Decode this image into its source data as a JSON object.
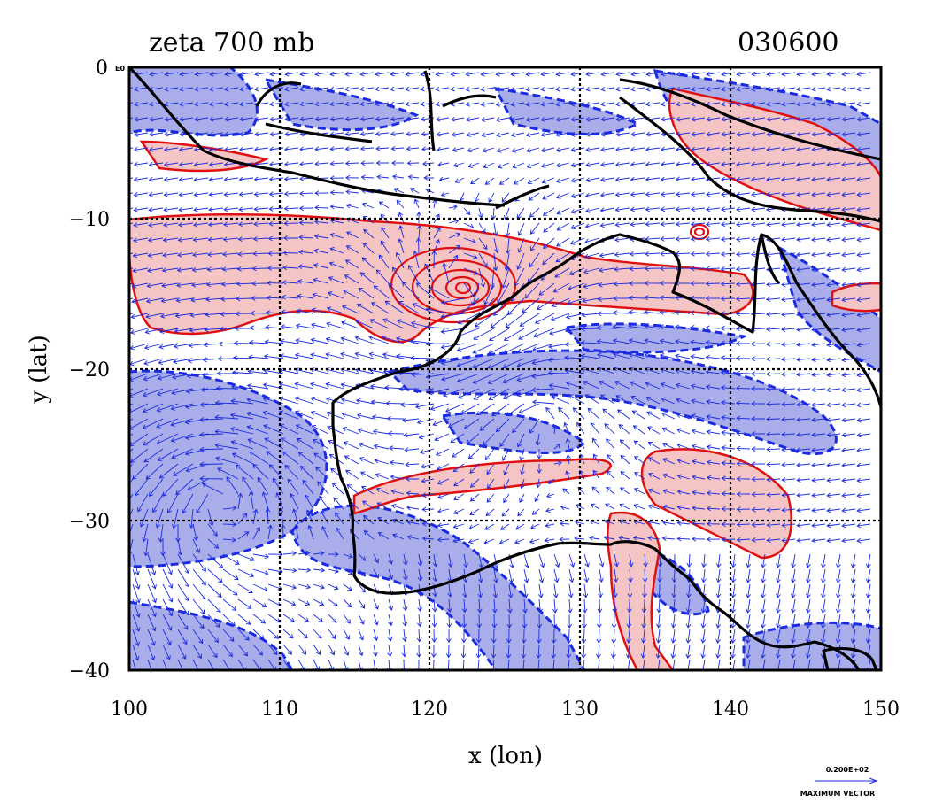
{
  "header": {
    "title": "zeta 700 mb",
    "time_label": "030600"
  },
  "corner_label": "E0",
  "axes": {
    "xlabel": "x (lon)",
    "ylabel": "y (lat)",
    "xlim": [
      100,
      150
    ],
    "ylim": [
      -40,
      0
    ],
    "x_ticks": [
      "100",
      "110",
      "120",
      "130",
      "140",
      "150"
    ],
    "y_ticks": [
      "0",
      "−10",
      "−20",
      "−30",
      "−40"
    ],
    "grid": true
  },
  "legend": {
    "magnitude_label": "0.200E+02",
    "caption": "MAXIMUM VECTOR"
  },
  "colors": {
    "positive_fill": "#f5c4c4",
    "positive_contour": "#e01010",
    "negative_fill": "#a9adea",
    "negative_contour": "#1a2be0",
    "vector": "#1a2be0",
    "coastline": "#000000"
  },
  "chart_data": {
    "type": "map",
    "field": "relative vorticity (zeta) at 700 mb with wind vectors",
    "vortex_center": {
      "lon": 122.3,
      "lat": -14.6
    }
  }
}
